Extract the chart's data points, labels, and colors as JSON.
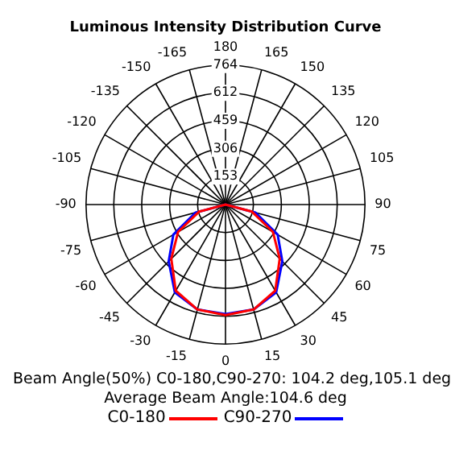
{
  "chart_data": {
    "type": "radar",
    "title": "Luminous Intensity Distribution Curve",
    "categories": [
      "180",
      "165",
      "150",
      "135",
      "120",
      "105",
      "90",
      "75",
      "60",
      "45",
      "30",
      "15",
      "0",
      "-15",
      "-30",
      "-45",
      "-60",
      "-75",
      "-90",
      "-105",
      "-120",
      "-135",
      "-150",
      "-165"
    ],
    "series": [
      {
        "name": "C0-180",
        "color": "#ff0000",
        "values": [
          0,
          0,
          0,
          0,
          0,
          0,
          0,
          150,
          300,
          420,
          545,
          595,
          605,
          595,
          545,
          420,
          300,
          150,
          0,
          0,
          0,
          0,
          0,
          0
        ]
      },
      {
        "name": "C90-270",
        "color": "#0000ff",
        "values": [
          0,
          0,
          0,
          0,
          0,
          0,
          0,
          170,
          330,
          440,
          555,
          595,
          600,
          595,
          555,
          440,
          330,
          170,
          0,
          0,
          0,
          0,
          0,
          0
        ]
      }
    ],
    "ylim": [
      0,
      764
    ],
    "yticks": [
      153,
      306,
      459,
      612,
      764
    ],
    "grid": true,
    "legend": "bottom",
    "marker": "none",
    "line_style": "solid",
    "annotations": [
      "Beam Angle(50%) C0-180,C90-270: 104.2 deg,105.1 deg",
      "Average Beam Angle:104.6 deg"
    ]
  }
}
